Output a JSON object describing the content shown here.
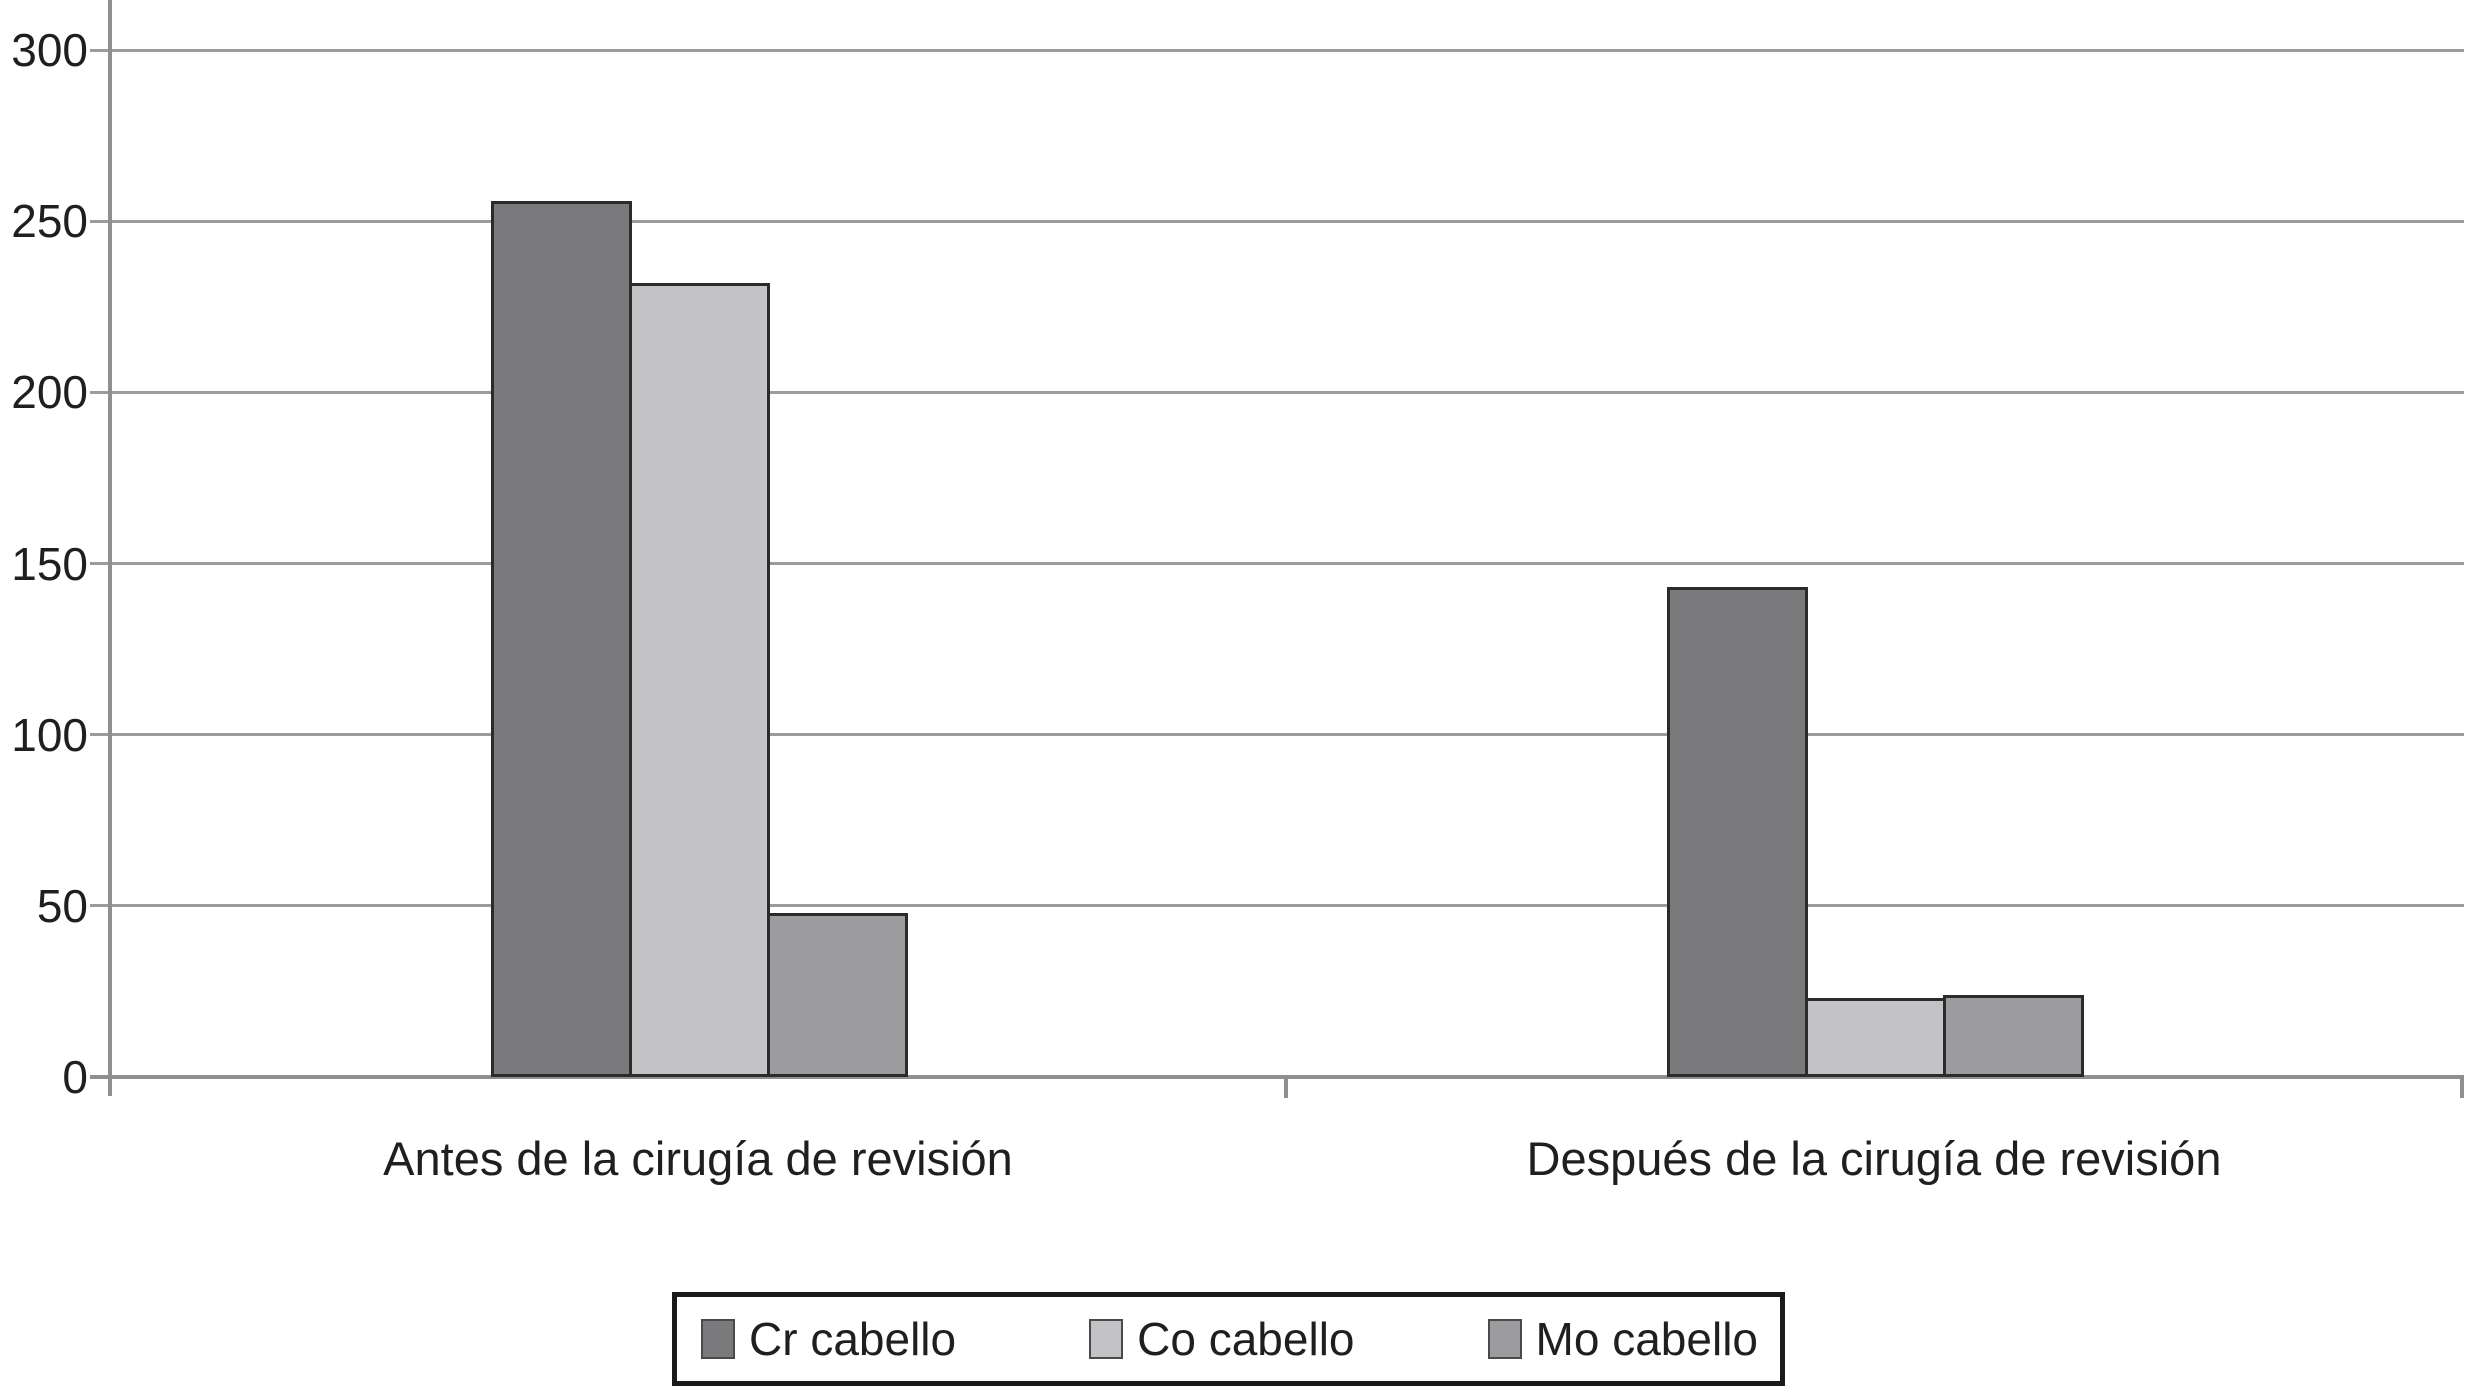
{
  "chart_data": {
    "type": "bar",
    "title": "",
    "xlabel": "",
    "ylabel": "",
    "categories": [
      "Antes de la cirugía de revisión",
      "Después de la cirugía de revisión"
    ],
    "series": [
      {
        "name": "Cr cabello",
        "color": "#7a7a7d",
        "values": [
          256,
          143
        ]
      },
      {
        "name": "Co cabello",
        "color": "#c3c3c5",
        "values": [
          232,
          23
        ]
      },
      {
        "name": "Mo cabello",
        "color": "#9c9c9f",
        "values": [
          48,
          24
        ]
      }
    ],
    "y_ticks": [
      0,
      50,
      100,
      150,
      200,
      250,
      300
    ],
    "ylim": [
      0,
      300
    ],
    "grid": true,
    "legend_position": "bottom",
    "bar_border_color": "#2b2b2b",
    "gridline_color": "#9c9c9c",
    "axis_color": "#8f8f8f",
    "text_color": "#1f1f1f"
  }
}
